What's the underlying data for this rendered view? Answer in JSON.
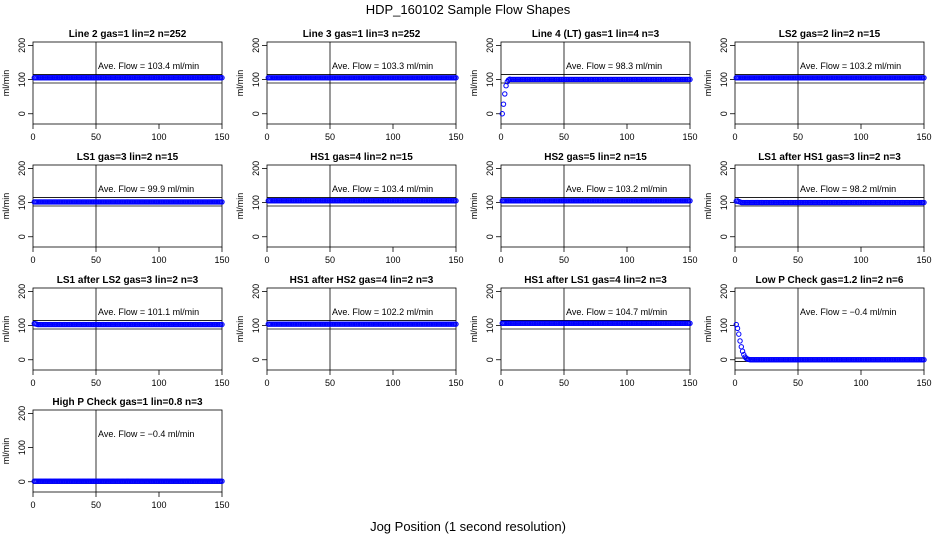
{
  "figure": {
    "title": "HDP_160102  Sample Flow Shapes",
    "xlabel": "Jog Position (1 second resolution)"
  },
  "chart_data": [
    {
      "type": "scatter",
      "title": "Line 2 gas=1 lin=2 n=252",
      "ylabel": "ml/min",
      "xlim": [
        0,
        150
      ],
      "ylim": [
        -30,
        210
      ],
      "xticks": [
        0,
        50,
        100,
        150
      ],
      "yticks": [
        0,
        100,
        200
      ],
      "vline": 50,
      "hlines": [
        90,
        115
      ],
      "annotation": "Ave. Flow = 103.4  ml/min",
      "color": "#0000ff",
      "shape": "flat",
      "level": 103.4
    },
    {
      "type": "scatter",
      "title": "Line 3 gas=1 lin=3 n=252",
      "ylabel": "ml/min",
      "xlim": [
        0,
        150
      ],
      "ylim": [
        -30,
        210
      ],
      "xticks": [
        0,
        50,
        100,
        150
      ],
      "yticks": [
        0,
        100,
        200
      ],
      "vline": 50,
      "hlines": [
        90,
        115
      ],
      "annotation": "Ave. Flow = 103.3  ml/min",
      "color": "#0000ff",
      "shape": "flat",
      "level": 103.3
    },
    {
      "type": "scatter",
      "title": "Line 4 (LT) gas=1 lin=4 n=3",
      "ylabel": "ml/min",
      "xlim": [
        0,
        150
      ],
      "ylim": [
        -30,
        210
      ],
      "xticks": [
        0,
        50,
        100,
        150
      ],
      "yticks": [
        0,
        100,
        200
      ],
      "vline": 50,
      "hlines": [
        90,
        115
      ],
      "annotation": "Ave. Flow = 98.3  ml/min",
      "color": "#0000ff",
      "shape": "rise",
      "level": 98.3,
      "early_points": [
        [
          1,
          0
        ],
        [
          2,
          28
        ],
        [
          3,
          58
        ],
        [
          4,
          82
        ],
        [
          5,
          94
        ],
        [
          6,
          99
        ],
        [
          7,
          101
        ]
      ]
    },
    {
      "type": "scatter",
      "title": "LS2 gas=2 lin=2 n=15",
      "ylabel": "ml/min",
      "xlim": [
        0,
        150
      ],
      "ylim": [
        -30,
        210
      ],
      "xticks": [
        0,
        50,
        100,
        150
      ],
      "yticks": [
        0,
        100,
        200
      ],
      "vline": 50,
      "hlines": [
        90,
        115
      ],
      "annotation": "Ave. Flow = 103.2  ml/min",
      "color": "#0000ff",
      "shape": "flat",
      "level": 103.2
    },
    {
      "type": "scatter",
      "title": "LS1 gas=3 lin=2 n=15",
      "ylabel": "ml/min",
      "xlim": [
        0,
        150
      ],
      "ylim": [
        -30,
        210
      ],
      "xticks": [
        0,
        50,
        100,
        150
      ],
      "yticks": [
        0,
        100,
        200
      ],
      "vline": 50,
      "hlines": [
        90,
        115
      ],
      "annotation": "Ave. Flow = 99.9  ml/min",
      "color": "#0000ff",
      "shape": "flat",
      "level": 99.9
    },
    {
      "type": "scatter",
      "title": "HS1 gas=4 lin=2 n=15",
      "ylabel": "ml/min",
      "xlim": [
        0,
        150
      ],
      "ylim": [
        -30,
        210
      ],
      "xticks": [
        0,
        50,
        100,
        150
      ],
      "yticks": [
        0,
        100,
        200
      ],
      "vline": 50,
      "hlines": [
        90,
        115
      ],
      "annotation": "Ave. Flow = 103.4  ml/min",
      "color": "#0000ff",
      "shape": "flat",
      "level": 103.4
    },
    {
      "type": "scatter",
      "title": "HS2 gas=5 lin=2 n=15",
      "ylabel": "ml/min",
      "xlim": [
        0,
        150
      ],
      "ylim": [
        -30,
        210
      ],
      "xticks": [
        0,
        50,
        100,
        150
      ],
      "yticks": [
        0,
        100,
        200
      ],
      "vline": 50,
      "hlines": [
        90,
        115
      ],
      "annotation": "Ave. Flow = 103.2  ml/min",
      "color": "#0000ff",
      "shape": "flat",
      "level": 103.2
    },
    {
      "type": "scatter",
      "title": "LS1 after HS1 gas=3 lin=2 n=3",
      "ylabel": "ml/min",
      "xlim": [
        0,
        150
      ],
      "ylim": [
        -30,
        210
      ],
      "xticks": [
        0,
        50,
        100,
        150
      ],
      "yticks": [
        0,
        100,
        200
      ],
      "vline": 50,
      "hlines": [
        90,
        115
      ],
      "annotation": "Ave. Flow = 98.2  ml/min",
      "color": "#0000ff",
      "shape": "flat",
      "level": 98.2,
      "early_points": [
        [
          1,
          104
        ],
        [
          2,
          105
        ],
        [
          3,
          103
        ],
        [
          4,
          102
        ]
      ]
    },
    {
      "type": "scatter",
      "title": "LS1 after LS2 gas=3 lin=2 n=3",
      "ylabel": "ml/min",
      "xlim": [
        0,
        150
      ],
      "ylim": [
        -30,
        210
      ],
      "xticks": [
        0,
        50,
        100,
        150
      ],
      "yticks": [
        0,
        100,
        200
      ],
      "vline": 50,
      "hlines": [
        90,
        115
      ],
      "annotation": "Ave. Flow = 101.1  ml/min",
      "color": "#0000ff",
      "shape": "flat",
      "level": 101.1,
      "early_points": [
        [
          1,
          106
        ],
        [
          2,
          105
        ],
        [
          3,
          104
        ],
        [
          4,
          103
        ]
      ]
    },
    {
      "type": "scatter",
      "title": "HS1 after HS2 gas=4 lin=2 n=3",
      "ylabel": "ml/min",
      "xlim": [
        0,
        150
      ],
      "ylim": [
        -30,
        210
      ],
      "xticks": [
        0,
        50,
        100,
        150
      ],
      "yticks": [
        0,
        100,
        200
      ],
      "vline": 50,
      "hlines": [
        90,
        115
      ],
      "annotation": "Ave. Flow = 102.2  ml/min",
      "color": "#0000ff",
      "shape": "flat",
      "level": 102.2
    },
    {
      "type": "scatter",
      "title": "HS1 after LS1 gas=4 lin=2 n=3",
      "ylabel": "ml/min",
      "xlim": [
        0,
        150
      ],
      "ylim": [
        -30,
        210
      ],
      "xticks": [
        0,
        50,
        100,
        150
      ],
      "yticks": [
        0,
        100,
        200
      ],
      "vline": 50,
      "hlines": [
        90,
        115
      ],
      "annotation": "Ave. Flow = 104.7  ml/min",
      "color": "#0000ff",
      "shape": "flat",
      "level": 104.7
    },
    {
      "type": "scatter",
      "title": "Low P Check gas=1.2 lin=2 n=6",
      "ylabel": "ml/min",
      "xlim": [
        0,
        150
      ],
      "ylim": [
        -30,
        210
      ],
      "xticks": [
        0,
        50,
        100,
        150
      ],
      "yticks": [
        0,
        100,
        200
      ],
      "vline": 50,
      "hlines": [
        -5,
        5
      ],
      "annotation": "Ave. Flow = −0.4  ml/min",
      "color": "#0000ff",
      "shape": "decay",
      "level": -0.4,
      "early_points": [
        [
          1,
          103
        ],
        [
          2,
          92
        ],
        [
          3,
          75
        ],
        [
          4,
          55
        ],
        [
          5,
          38
        ],
        [
          6,
          25
        ],
        [
          7,
          15
        ],
        [
          8,
          8
        ],
        [
          9,
          4
        ],
        [
          10,
          2
        ],
        [
          11,
          1
        ]
      ]
    },
    {
      "type": "scatter",
      "title": "High P Check gas=1 lin=0.8 n=3",
      "ylabel": "ml/min",
      "xlim": [
        0,
        150
      ],
      "ylim": [
        -30,
        210
      ],
      "xticks": [
        0,
        50,
        100,
        150
      ],
      "yticks": [
        0,
        100,
        200
      ],
      "vline": 50,
      "hlines": [
        -5,
        5
      ],
      "annotation": "Ave. Flow = −0.4  ml/min",
      "color": "#0000ff",
      "shape": "flat",
      "level": -0.4
    }
  ]
}
